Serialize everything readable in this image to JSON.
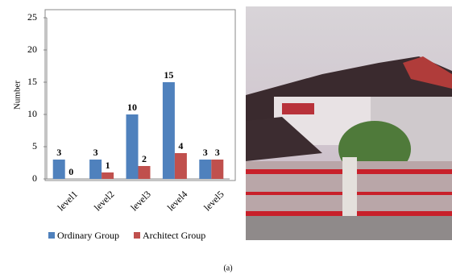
{
  "chart_data": {
    "type": "bar",
    "y_label": "Number",
    "categories": [
      "level1",
      "level2",
      "level3",
      "level4",
      "level5"
    ],
    "series": [
      {
        "name": "Ordinary Group",
        "color": "#4f81bd",
        "values": [
          3,
          3,
          10,
          15,
          3
        ]
      },
      {
        "name": "Architect Group",
        "color": "#c0504d",
        "values": [
          0,
          1,
          2,
          4,
          3
        ]
      }
    ],
    "ylim": [
      0,
      25
    ],
    "yticks": [
      0,
      5,
      10,
      15,
      20,
      25
    ],
    "grid": false,
    "legend": "bottom"
  },
  "caption": "(a)"
}
